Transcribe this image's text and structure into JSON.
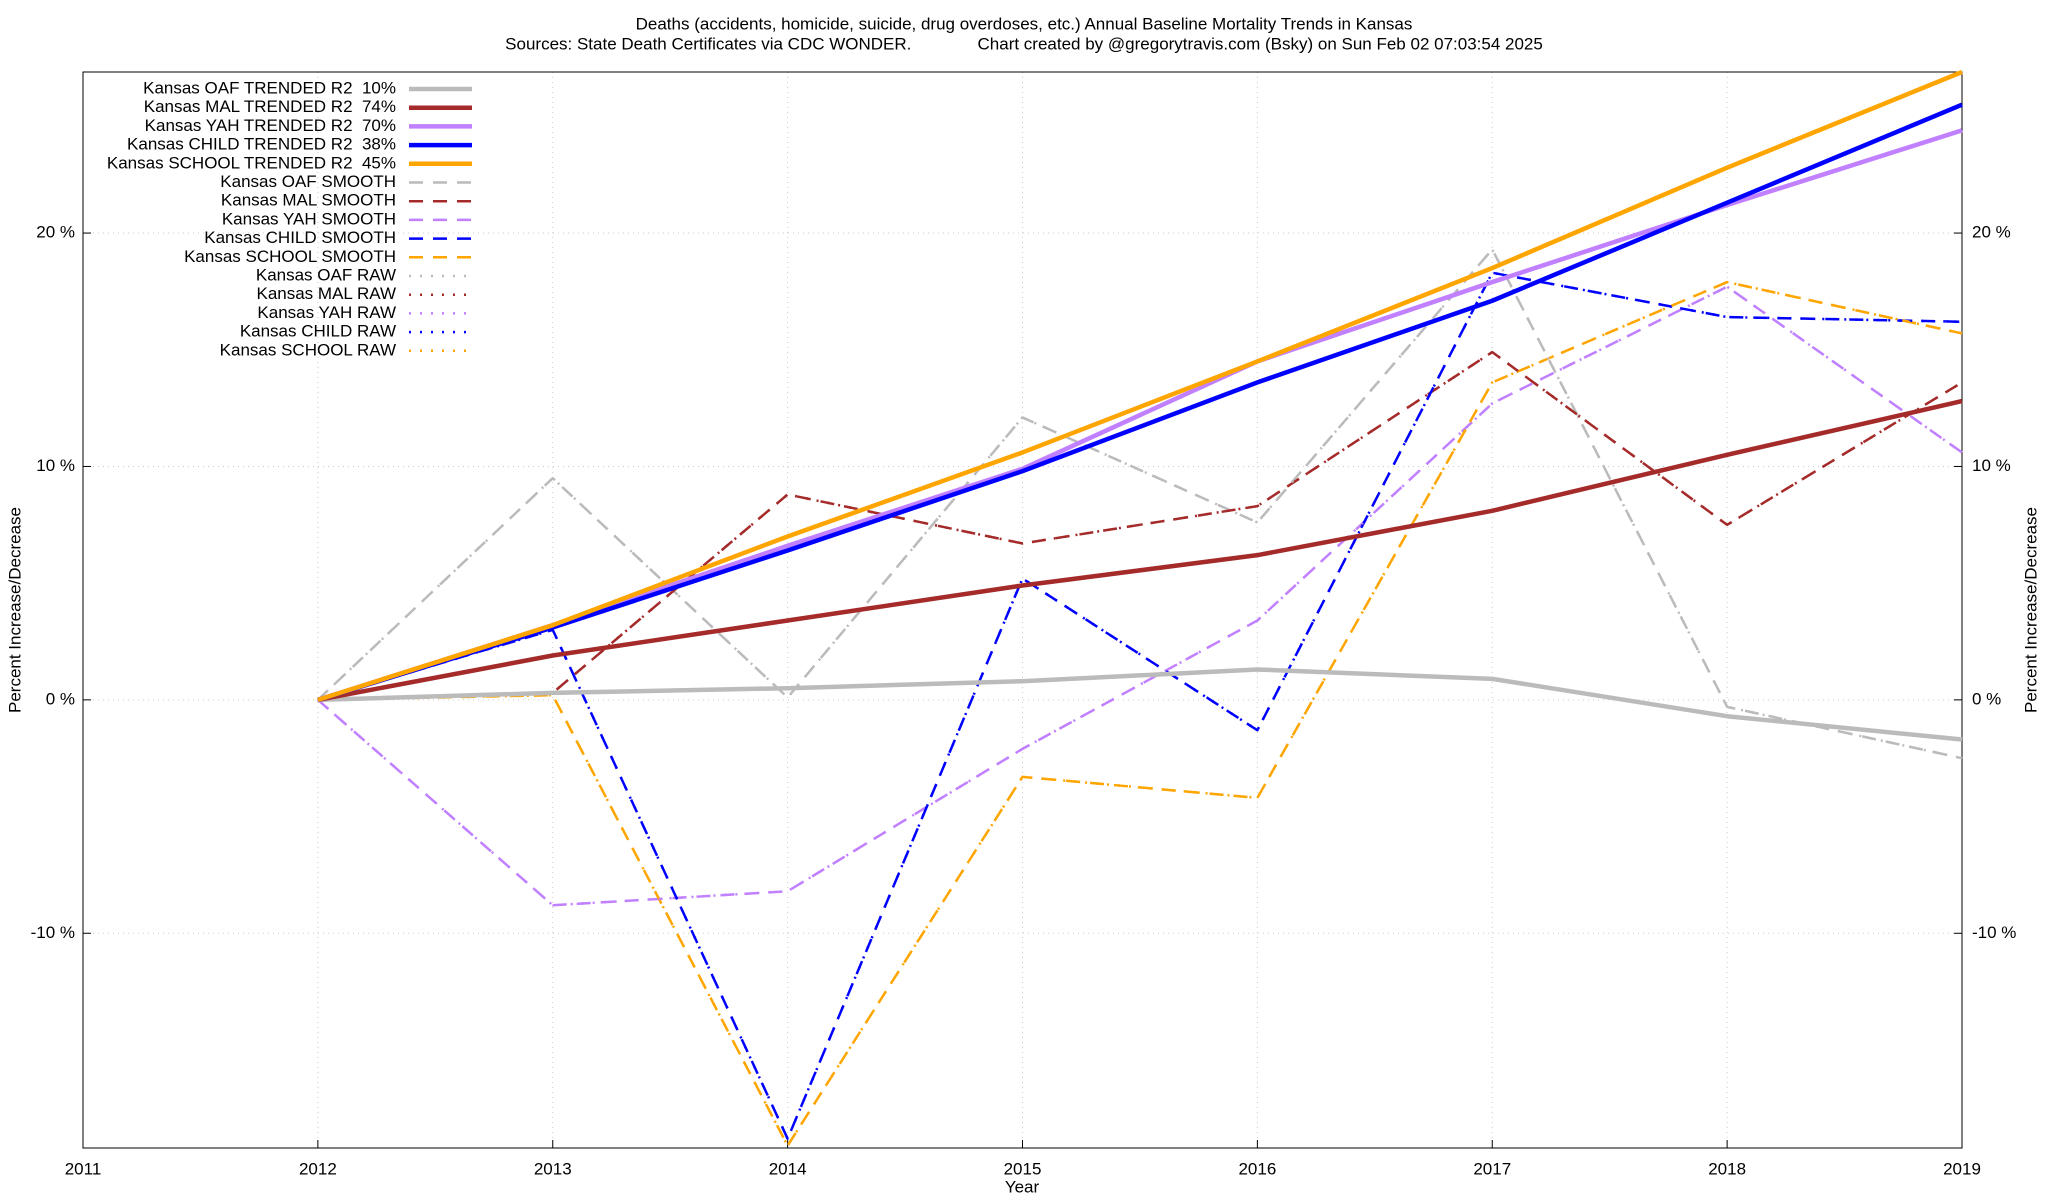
{
  "chart_data": {
    "type": "line",
    "title": "Deaths (accidents, homicide, suicide, drug overdoses, etc.)  Annual Baseline Mortality Trends in Kansas",
    "subtitle": "Sources: State Death Certificates via CDC WONDER.              Chart created by @gregorytravis.com (Bsky) on Sun Feb 02 07:03:54 2025",
    "xlabel": "Year",
    "ylabel": "Percent Increase/Decrease",
    "y2label": "Percent Increase/Decrease",
    "x": [
      2012,
      2013,
      2014,
      2015,
      2016,
      2017,
      2018,
      2019
    ],
    "xlim": [
      2011,
      2019
    ],
    "xticks": [
      2011,
      2012,
      2013,
      2014,
      2015,
      2016,
      2017,
      2018,
      2019
    ],
    "ylim": [
      -19.2,
      26.9
    ],
    "yticks": [
      {
        "value": -10,
        "label": "-10 %"
      },
      {
        "value": 0,
        "label": "0 %"
      },
      {
        "value": 10,
        "label": "10 %"
      },
      {
        "value": 20,
        "label": "20 %"
      }
    ],
    "grid": true,
    "legend": "top-left",
    "series": [
      {
        "name": "Kansas OAF TRENDED R2  10%",
        "color": "#bbbbbb",
        "style": "solid",
        "values": [
          0,
          0.3,
          0.5,
          0.8,
          1.3,
          0.9,
          -0.7,
          -1.7
        ]
      },
      {
        "name": "Kansas MAL TRENDED R2  74%",
        "color": "#a52a2a",
        "style": "solid",
        "values": [
          0,
          1.9,
          3.4,
          4.9,
          6.2,
          8.1,
          10.5,
          12.8
        ]
      },
      {
        "name": "Kansas YAH TRENDED R2  70%",
        "color": "#c080ff",
        "style": "solid",
        "values": [
          0,
          3.2,
          6.6,
          9.9,
          14.5,
          17.9,
          21.2,
          24.4
        ]
      },
      {
        "name": "Kansas CHILD TRENDED R2  38%",
        "color": "#0000ff",
        "style": "solid",
        "values": [
          0,
          3.1,
          6.4,
          9.8,
          13.6,
          17.1,
          21.3,
          25.5
        ]
      },
      {
        "name": "Kansas SCHOOL TRENDED R2  45%",
        "color": "#ffa500",
        "style": "solid",
        "values": [
          0,
          3.2,
          7.0,
          10.6,
          14.5,
          18.5,
          22.8,
          26.9
        ]
      },
      {
        "name": "Kansas OAF SMOOTH",
        "color": "#bbbbbb",
        "style": "dashed",
        "values": [
          0,
          9.5,
          0.1,
          12.1,
          7.6,
          19.3,
          -0.3,
          -2.5
        ]
      },
      {
        "name": "Kansas MAL SMOOTH",
        "color": "#a52a2a",
        "style": "dashed",
        "values": [
          0,
          0.3,
          8.8,
          6.7,
          8.3,
          14.9,
          7.5,
          13.6
        ]
      },
      {
        "name": "Kansas YAH SMOOTH",
        "color": "#c080ff",
        "style": "dashed",
        "values": [
          0,
          -8.8,
          -8.2,
          -2.1,
          3.4,
          12.7,
          17.7,
          10.6
        ]
      },
      {
        "name": "Kansas CHILD SMOOTH",
        "color": "#0000ff",
        "style": "dashed",
        "values": [
          0,
          3.0,
          -18.8,
          5.2,
          -1.3,
          18.3,
          16.4,
          16.2
        ]
      },
      {
        "name": "Kansas SCHOOL SMOOTH",
        "color": "#ffa500",
        "style": "dashed",
        "values": [
          0,
          0.2,
          -19.1,
          -3.3,
          -4.2,
          13.6,
          17.9,
          15.7
        ]
      },
      {
        "name": "Kansas OAF RAW",
        "color": "#bbbbbb",
        "style": "dotted",
        "values": [
          0,
          9.5,
          0.1,
          12.1,
          7.6,
          19.3,
          -0.3,
          -2.5
        ]
      },
      {
        "name": "Kansas MAL RAW",
        "color": "#a52a2a",
        "style": "dotted",
        "values": [
          0,
          0.3,
          8.8,
          6.7,
          8.3,
          14.9,
          7.5,
          13.6
        ]
      },
      {
        "name": "Kansas YAH RAW",
        "color": "#c080ff",
        "style": "dotted",
        "values": [
          0,
          -8.8,
          -8.2,
          -2.1,
          3.4,
          12.7,
          17.7,
          10.6
        ]
      },
      {
        "name": "Kansas CHILD RAW",
        "color": "#0000ff",
        "style": "dotted",
        "values": [
          0,
          3.0,
          -18.8,
          5.2,
          -1.3,
          18.3,
          16.4,
          16.2
        ]
      },
      {
        "name": "Kansas SCHOOL RAW",
        "color": "#ffa500",
        "style": "dotted",
        "values": [
          0,
          0.2,
          -19.1,
          -3.3,
          -4.2,
          13.6,
          17.9,
          15.7
        ]
      }
    ]
  }
}
